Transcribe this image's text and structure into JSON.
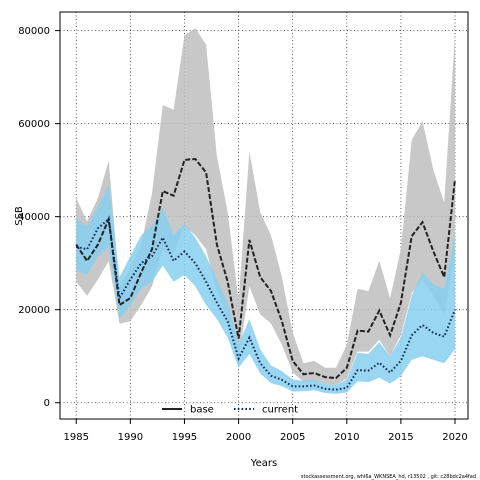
{
  "chart_data": {
    "type": "line",
    "xlabel": "Years",
    "ylabel": "SSB",
    "xlim": [
      1983.5,
      2021.2
    ],
    "ylim": [
      -3500,
      84000
    ],
    "xticks": [
      1985,
      1990,
      1995,
      2000,
      2005,
      2010,
      2015,
      2020
    ],
    "yticks": [
      0,
      20000,
      40000,
      60000,
      80000
    ],
    "grid": true,
    "legend_position": "bottom-center",
    "x": [
      1985,
      1986,
      1987,
      1988,
      1989,
      1990,
      1991,
      1992,
      1993,
      1994,
      1995,
      1996,
      1997,
      1998,
      1999,
      2000,
      2001,
      2002,
      2003,
      2004,
      2005,
      2006,
      2007,
      2008,
      2009,
      2010,
      2011,
      2012,
      2013,
      2014,
      2015,
      2016,
      2017,
      2018,
      2019,
      2020
    ],
    "series": [
      {
        "name": "base",
        "color": "#222222",
        "band_color": "#bebebe",
        "line_style": "dashed",
        "values": [
          34000,
          30500,
          34000,
          39500,
          21000,
          22500,
          28000,
          33000,
          45500,
          44500,
          52200,
          52400,
          49500,
          34000,
          26000,
          13800,
          35000,
          27000,
          24000,
          17500,
          9000,
          6100,
          6400,
          5500,
          5300,
          7500,
          15500,
          15300,
          19800,
          14500,
          21500,
          35800,
          38800,
          32500,
          27000,
          48000
        ],
        "upper": [
          44000,
          39000,
          44000,
          52000,
          25000,
          29000,
          34000,
          45000,
          64000,
          63000,
          79000,
          80500,
          77000,
          53000,
          41000,
          22000,
          54000,
          41000,
          36000,
          27000,
          15000,
          8500,
          9000,
          7500,
          7500,
          12500,
          24500,
          24000,
          30500,
          22500,
          33000,
          56500,
          60500,
          50000,
          43000,
          79000
        ],
        "lower": [
          26000,
          23000,
          26500,
          30500,
          17000,
          17500,
          21000,
          25000,
          33000,
          32000,
          38000,
          36000,
          33000,
          24000,
          18000,
          9500,
          25000,
          19000,
          17000,
          12500,
          6500,
          4500,
          4800,
          4000,
          3800,
          5200,
          11000,
          11000,
          13500,
          10000,
          14500,
          23500,
          26500,
          23000,
          19000,
          32000
        ]
      },
      {
        "name": "current",
        "color": "#0d2a55",
        "band_color": "#87cfef",
        "line_style": "dotted",
        "values": [
          33500,
          33000,
          37500,
          39500,
          22500,
          26500,
          30000,
          31500,
          35500,
          30500,
          32500,
          30000,
          26000,
          21500,
          17500,
          9500,
          14000,
          8500,
          5800,
          4900,
          3500,
          3500,
          3700,
          3000,
          2800,
          3200,
          7000,
          6900,
          8600,
          6500,
          9000,
          14500,
          16700,
          15000,
          14200,
          20000
        ],
        "upper": [
          39500,
          38000,
          42000,
          47000,
          27000,
          31500,
          36000,
          38000,
          42000,
          36000,
          38500,
          35500,
          31500,
          26500,
          21500,
          12500,
          18000,
          11500,
          8000,
          6800,
          5000,
          4700,
          4900,
          4000,
          3800,
          5000,
          10700,
          10500,
          13000,
          10000,
          14000,
          23000,
          28000,
          25500,
          24500,
          36000
        ],
        "lower": [
          28500,
          27500,
          31500,
          33500,
          18000,
          21000,
          24500,
          26000,
          29500,
          26000,
          27500,
          25000,
          21000,
          18000,
          14000,
          7500,
          10500,
          6300,
          4200,
          3600,
          2400,
          2500,
          2700,
          2100,
          1900,
          2200,
          4600,
          4400,
          5400,
          4100,
          5700,
          9200,
          10000,
          9200,
          8500,
          11500
        ]
      }
    ],
    "footer": "stockassessment.org, whl6a_WKNSEA_hd, r13502 , git: c28bdc2a4fad"
  }
}
